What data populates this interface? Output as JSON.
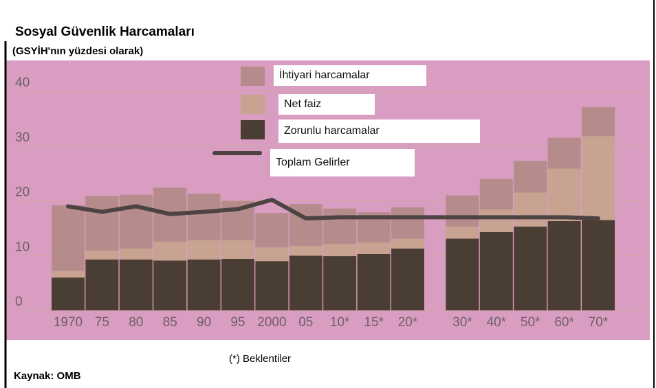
{
  "chart_data": {
    "type": "bar",
    "stacked": true,
    "title": "Sosyal Güvenlik Harcamaları",
    "subtitle": "(GSYİH'nın yüzdesi olarak)",
    "note": "(*) Beklentiler",
    "source": "Kaynak: OMB",
    "categories": [
      "1970",
      "75",
      "80",
      "85",
      "90",
      "95",
      "2000",
      "05",
      "10*",
      "15*",
      "20*",
      "30*",
      "40*",
      "50*",
      "60*",
      "70*"
    ],
    "series": [
      {
        "name": "Zorunlu harcamalar",
        "color": "#4a3d33",
        "values": [
          6,
          9.3,
          9.3,
          9.1,
          9.3,
          9.4,
          9,
          10,
          9.9,
          10.3,
          11.3,
          13.1,
          14.3,
          15.3,
          16.3,
          16.5
        ]
      },
      {
        "name": "Net faiz",
        "color": "#c9a392",
        "values": [
          1.2,
          1.6,
          2,
          3.4,
          3.5,
          3.4,
          2.5,
          1.8,
          2.2,
          2.1,
          1.8,
          2.2,
          4.1,
          6.2,
          9.6,
          15.3
        ]
      },
      {
        "name": "İhtiyari harcamalar",
        "color": "#b58c8b",
        "values": [
          12,
          10,
          9.8,
          9.9,
          8.5,
          7.2,
          6.3,
          7.6,
          6.5,
          5.5,
          5.7,
          5.7,
          5.6,
          5.8,
          5.6,
          5.3
        ]
      },
      {
        "name": "Toplam Gelirler",
        "type": "line",
        "color": "#4d4343",
        "values": [
          19,
          18,
          19,
          17.6,
          18,
          18.5,
          20.2,
          16.8,
          17,
          17,
          17,
          17,
          17,
          17,
          17,
          16.8
        ]
      }
    ],
    "ylim": [
      0,
      40
    ],
    "yticks": [
      0,
      10,
      20,
      30,
      40
    ],
    "grid": true
  }
}
